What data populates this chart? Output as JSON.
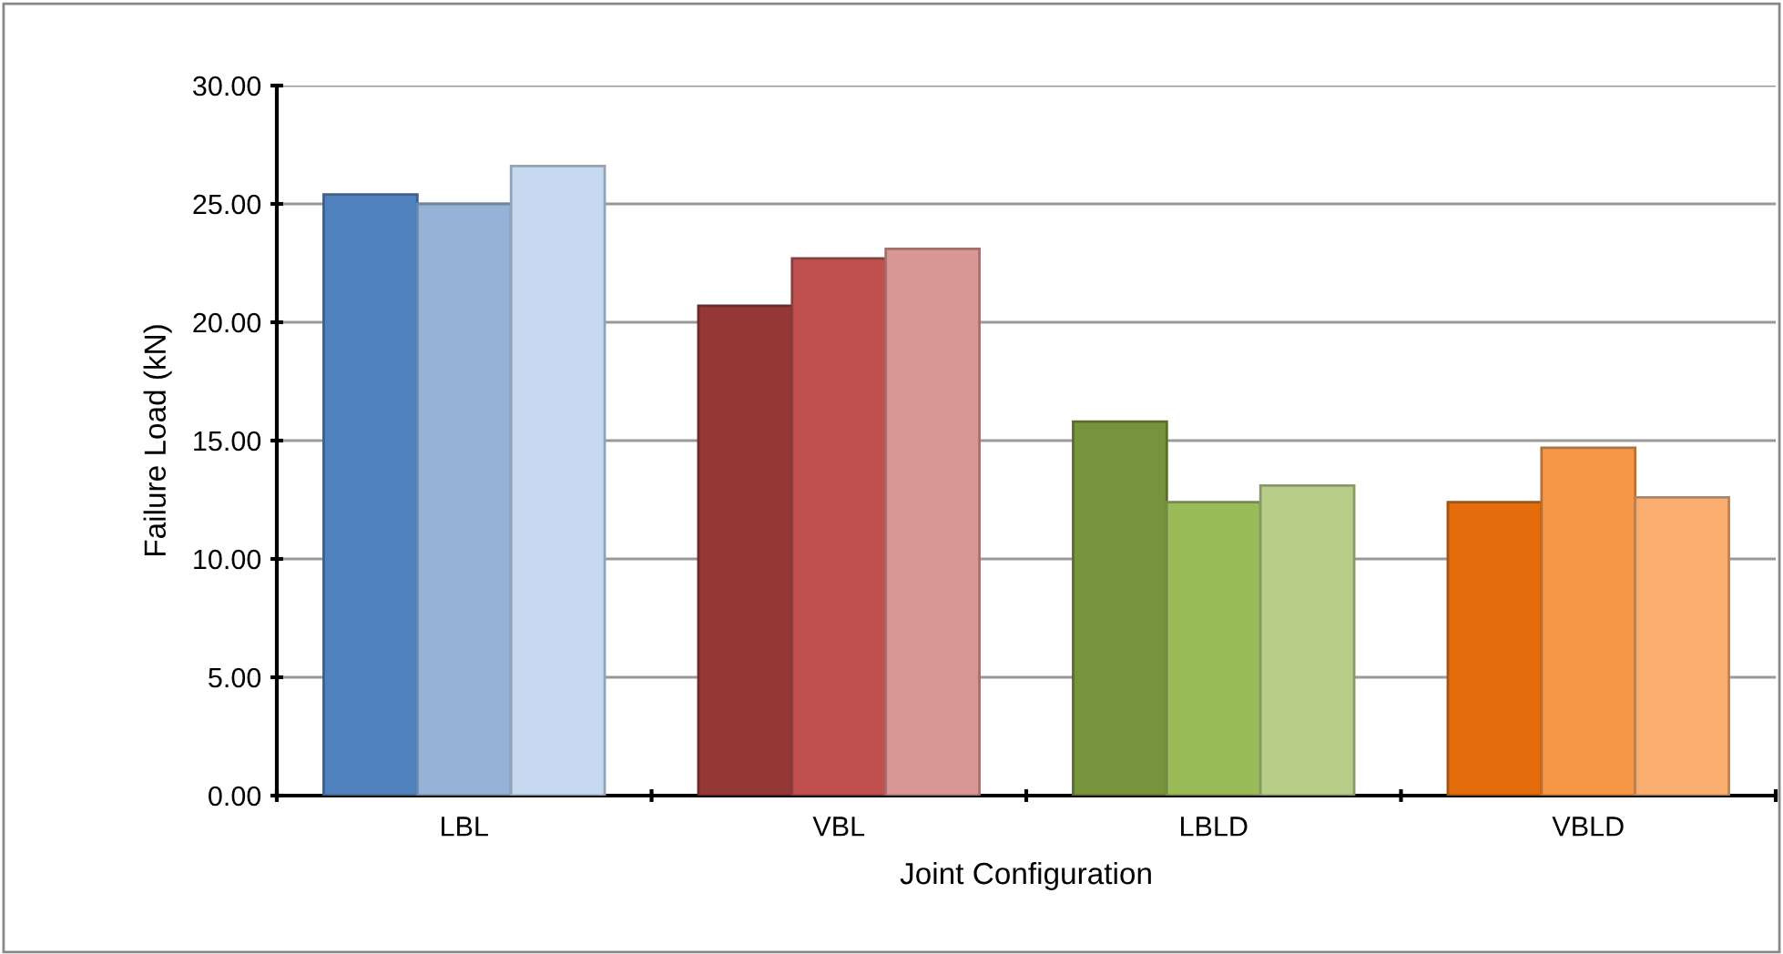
{
  "chart_data": {
    "type": "bar",
    "xlabel": "Joint Configuration",
    "ylabel": "Failure Load (kN)",
    "categories": [
      "LBL",
      "VBL",
      "LBLD",
      "VBLD"
    ],
    "series": [
      {
        "colors": [
          "#4f81bd",
          "#953735",
          "#77933c",
          "#e46c0a"
        ],
        "values": [
          25.4,
          20.7,
          15.8,
          12.4
        ]
      },
      {
        "colors": [
          "#95b3d7",
          "#c0504d",
          "#9bbb59",
          "#f79646"
        ],
        "values": [
          25.0,
          22.7,
          12.4,
          14.7
        ]
      },
      {
        "colors": [
          "#c6d9f1",
          "#d99694",
          "#b7cd88",
          "#f9ae6f"
        ],
        "values": [
          26.6,
          23.1,
          13.1,
          12.6
        ]
      }
    ],
    "ylim": [
      0,
      30
    ],
    "yticks": [
      {
        "value": 0,
        "label": "0.00"
      },
      {
        "value": 5,
        "label": "5.00"
      },
      {
        "value": 10,
        "label": "10.00"
      },
      {
        "value": 15,
        "label": "15.00"
      },
      {
        "value": 20,
        "label": "20.00"
      },
      {
        "value": 25,
        "label": "25.00"
      },
      {
        "value": 30,
        "label": "30.00"
      }
    ],
    "grid": "y",
    "legend": false
  }
}
